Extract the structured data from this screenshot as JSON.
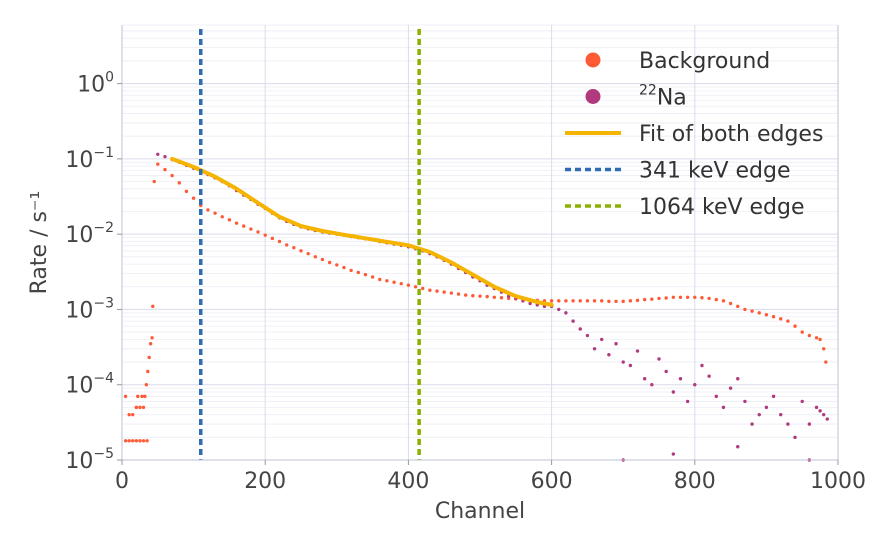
{
  "chart_data": {
    "type": "scatter",
    "title": "",
    "xlabel": "Channel",
    "ylabel": "Rate / s⁻¹",
    "xlim": [
      0,
      1000
    ],
    "ylim": [
      1e-05,
      6
    ],
    "yscale": "log",
    "grid": true,
    "legend_position": "top-right",
    "x_ticks": [
      {
        "value": 0,
        "label": "0"
      },
      {
        "value": 200,
        "label": "200"
      },
      {
        "value": 400,
        "label": "400"
      },
      {
        "value": 600,
        "label": "600"
      },
      {
        "value": 800,
        "label": "800"
      },
      {
        "value": 1000,
        "label": "1000"
      }
    ],
    "y_ticks": [
      {
        "value": 1,
        "base": "10",
        "exp": "0"
      },
      {
        "value": 0.1,
        "base": "10",
        "exp": "−1"
      },
      {
        "value": 0.01,
        "base": "10",
        "exp": "−2"
      },
      {
        "value": 0.001,
        "base": "10",
        "exp": "−3"
      },
      {
        "value": 0.0001,
        "base": "10",
        "exp": "−4"
      },
      {
        "value": 1e-05,
        "base": "10",
        "exp": "−5"
      }
    ],
    "series": [
      {
        "name": "Background",
        "kind": "scatter",
        "color": "#ff5a36",
        "points": [
          [
            5,
            1.8e-05
          ],
          [
            10,
            1.8e-05
          ],
          [
            15,
            1.8e-05
          ],
          [
            20,
            1.8e-05
          ],
          [
            25,
            1.8e-05
          ],
          [
            30,
            1.8e-05
          ],
          [
            35,
            1.8e-05
          ],
          [
            5,
            7e-05
          ],
          [
            10,
            4e-05
          ],
          [
            15,
            4e-05
          ],
          [
            20,
            5e-05
          ],
          [
            22,
            7e-05
          ],
          [
            25,
            5e-05
          ],
          [
            28,
            7e-05
          ],
          [
            30,
            5e-05
          ],
          [
            32,
            7e-05
          ],
          [
            34,
            0.0001
          ],
          [
            36,
            0.00015
          ],
          [
            38,
            0.00023
          ],
          [
            40,
            0.00035
          ],
          [
            42,
            0.00042
          ],
          [
            43,
            0.0011
          ],
          [
            45,
            0.05
          ],
          [
            50,
            0.085
          ],
          [
            60,
            0.072
          ],
          [
            70,
            0.06
          ],
          [
            80,
            0.048
          ],
          [
            90,
            0.037
          ],
          [
            100,
            0.03
          ],
          [
            110,
            0.024
          ],
          [
            120,
            0.021
          ],
          [
            130,
            0.019
          ],
          [
            140,
            0.017
          ],
          [
            150,
            0.0155
          ],
          [
            160,
            0.014
          ],
          [
            170,
            0.0128
          ],
          [
            180,
            0.0117
          ],
          [
            190,
            0.0107
          ],
          [
            200,
            0.0097
          ],
          [
            210,
            0.0088
          ],
          [
            220,
            0.008
          ],
          [
            230,
            0.0072
          ],
          [
            240,
            0.0066
          ],
          [
            250,
            0.006
          ],
          [
            260,
            0.0055
          ],
          [
            270,
            0.005
          ],
          [
            280,
            0.0046
          ],
          [
            290,
            0.0042
          ],
          [
            300,
            0.0039
          ],
          [
            310,
            0.0036
          ],
          [
            320,
            0.0033
          ],
          [
            330,
            0.0031
          ],
          [
            340,
            0.0029
          ],
          [
            350,
            0.0027
          ],
          [
            360,
            0.0025
          ],
          [
            370,
            0.0024
          ],
          [
            380,
            0.0023
          ],
          [
            390,
            0.0022
          ],
          [
            400,
            0.0021
          ],
          [
            410,
            0.002
          ],
          [
            420,
            0.0019
          ],
          [
            430,
            0.0018
          ],
          [
            440,
            0.00175
          ],
          [
            450,
            0.0017
          ],
          [
            460,
            0.00165
          ],
          [
            470,
            0.0016
          ],
          [
            480,
            0.00155
          ],
          [
            490,
            0.00152
          ],
          [
            500,
            0.0015
          ],
          [
            510,
            0.00148
          ],
          [
            520,
            0.00145
          ],
          [
            530,
            0.00143
          ],
          [
            540,
            0.0014
          ],
          [
            550,
            0.00138
          ],
          [
            560,
            0.00136
          ],
          [
            570,
            0.00134
          ],
          [
            580,
            0.00132
          ],
          [
            590,
            0.0013
          ],
          [
            600,
            0.0013
          ],
          [
            610,
            0.0013
          ],
          [
            620,
            0.0013
          ],
          [
            630,
            0.0013
          ],
          [
            640,
            0.0013
          ],
          [
            650,
            0.0013
          ],
          [
            660,
            0.0013
          ],
          [
            670,
            0.0013
          ],
          [
            680,
            0.00128
          ],
          [
            690,
            0.00128
          ],
          [
            700,
            0.00128
          ],
          [
            710,
            0.0013
          ],
          [
            720,
            0.00132
          ],
          [
            730,
            0.00135
          ],
          [
            740,
            0.00137
          ],
          [
            750,
            0.0014
          ],
          [
            760,
            0.00142
          ],
          [
            770,
            0.00145
          ],
          [
            780,
            0.00145
          ],
          [
            790,
            0.00145
          ],
          [
            800,
            0.00145
          ],
          [
            810,
            0.00143
          ],
          [
            820,
            0.0014
          ],
          [
            830,
            0.00135
          ],
          [
            840,
            0.0013
          ],
          [
            850,
            0.0012
          ],
          [
            860,
            0.0011
          ],
          [
            870,
            0.001
          ],
          [
            880,
            0.00095
          ],
          [
            890,
            0.0009
          ],
          [
            900,
            0.00085
          ],
          [
            910,
            0.0008
          ],
          [
            920,
            0.00075
          ],
          [
            930,
            0.0007
          ],
          [
            940,
            0.0006
          ],
          [
            950,
            0.0005
          ],
          [
            960,
            0.00045
          ],
          [
            970,
            0.00042
          ],
          [
            975,
            0.0004
          ],
          [
            980,
            0.0003
          ],
          [
            983,
            0.0002
          ]
        ]
      },
      {
        "name": "²²Na",
        "label_base": "Na",
        "label_sup": "22",
        "kind": "scatter",
        "color": "#b03a7d",
        "points": [
          [
            50,
            0.115
          ],
          [
            60,
            0.107
          ],
          [
            70,
            0.098
          ],
          [
            80,
            0.09
          ],
          [
            90,
            0.082
          ],
          [
            100,
            0.075
          ],
          [
            110,
            0.068
          ],
          [
            120,
            0.062
          ],
          [
            130,
            0.056
          ],
          [
            140,
            0.05
          ],
          [
            150,
            0.044
          ],
          [
            160,
            0.038
          ],
          [
            170,
            0.033
          ],
          [
            180,
            0.029
          ],
          [
            190,
            0.025
          ],
          [
            200,
            0.022
          ],
          [
            210,
            0.019
          ],
          [
            220,
            0.0165
          ],
          [
            230,
            0.0148
          ],
          [
            240,
            0.0135
          ],
          [
            250,
            0.0125
          ],
          [
            260,
            0.0118
          ],
          [
            270,
            0.0112
          ],
          [
            280,
            0.0107
          ],
          [
            290,
            0.0103
          ],
          [
            300,
            0.01
          ],
          [
            310,
            0.0097
          ],
          [
            320,
            0.0093
          ],
          [
            330,
            0.009
          ],
          [
            340,
            0.0087
          ],
          [
            350,
            0.0084
          ],
          [
            360,
            0.008
          ],
          [
            370,
            0.0077
          ],
          [
            380,
            0.0074
          ],
          [
            390,
            0.0071
          ],
          [
            400,
            0.0068
          ],
          [
            410,
            0.0064
          ],
          [
            420,
            0.006
          ],
          [
            430,
            0.0055
          ],
          [
            440,
            0.005
          ],
          [
            450,
            0.0045
          ],
          [
            460,
            0.004
          ],
          [
            470,
            0.0035
          ],
          [
            480,
            0.0031
          ],
          [
            490,
            0.0027
          ],
          [
            500,
            0.0024
          ],
          [
            510,
            0.0021
          ],
          [
            520,
            0.0019
          ],
          [
            530,
            0.0017
          ],
          [
            540,
            0.0015
          ],
          [
            550,
            0.0014
          ],
          [
            560,
            0.0013
          ],
          [
            570,
            0.0012
          ],
          [
            580,
            0.00115
          ],
          [
            590,
            0.0011
          ],
          [
            600,
            0.0011
          ],
          [
            610,
            0.001
          ],
          [
            620,
            0.0009
          ],
          [
            630,
            0.0007
          ],
          [
            640,
            0.00055
          ],
          [
            650,
            0.00045
          ],
          [
            660,
            0.0003
          ],
          [
            670,
            0.0004
          ],
          [
            680,
            0.00025
          ],
          [
            690,
            0.00035
          ],
          [
            700,
            0.0002
          ],
          [
            710,
            0.00018
          ],
          [
            720,
            0.00028
          ],
          [
            730,
            0.00012
          ],
          [
            740,
            0.0001
          ],
          [
            750,
            0.00022
          ],
          [
            760,
            0.00015
          ],
          [
            770,
            8e-05
          ],
          [
            780,
            0.00012
          ],
          [
            790,
            6e-05
          ],
          [
            800,
            0.0001
          ],
          [
            810,
            0.00018
          ],
          [
            820,
            0.00013
          ],
          [
            830,
            7e-05
          ],
          [
            840,
            5e-05
          ],
          [
            850,
            9e-05
          ],
          [
            860,
            0.00012
          ],
          [
            870,
            6e-05
          ],
          [
            880,
            3e-05
          ],
          [
            890,
            4e-05
          ],
          [
            900,
            5e-05
          ],
          [
            910,
            7e-05
          ],
          [
            920,
            4e-05
          ],
          [
            930,
            3e-05
          ],
          [
            940,
            2e-05
          ],
          [
            950,
            6e-05
          ],
          [
            960,
            3e-05
          ],
          [
            970,
            5e-05
          ],
          [
            975,
            4.5e-05
          ],
          [
            980,
            4e-05
          ],
          [
            985,
            3.5e-05
          ],
          [
            700,
            1e-05
          ],
          [
            770,
            1.2e-05
          ],
          [
            860,
            1.5e-05
          ],
          [
            960,
            1e-05
          ]
        ]
      },
      {
        "name": "Fit of both edges",
        "kind": "line",
        "color": "#f5b400",
        "points": [
          [
            70,
            0.1
          ],
          [
            100,
            0.078
          ],
          [
            130,
            0.058
          ],
          [
            160,
            0.04
          ],
          [
            190,
            0.026
          ],
          [
            220,
            0.017
          ],
          [
            250,
            0.0128
          ],
          [
            280,
            0.011
          ],
          [
            310,
            0.0098
          ],
          [
            340,
            0.0088
          ],
          [
            370,
            0.0079
          ],
          [
            400,
            0.0071
          ],
          [
            430,
            0.0058
          ],
          [
            460,
            0.0042
          ],
          [
            490,
            0.0029
          ],
          [
            520,
            0.002
          ],
          [
            550,
            0.0015
          ],
          [
            580,
            0.00125
          ],
          [
            600,
            0.00115
          ]
        ]
      },
      {
        "name": "341 keV edge",
        "kind": "vline",
        "color": "#2f6db3",
        "x": 110
      },
      {
        "name": "1064 keV edge",
        "kind": "vline",
        "color": "#8cb000",
        "x": 415
      }
    ]
  }
}
